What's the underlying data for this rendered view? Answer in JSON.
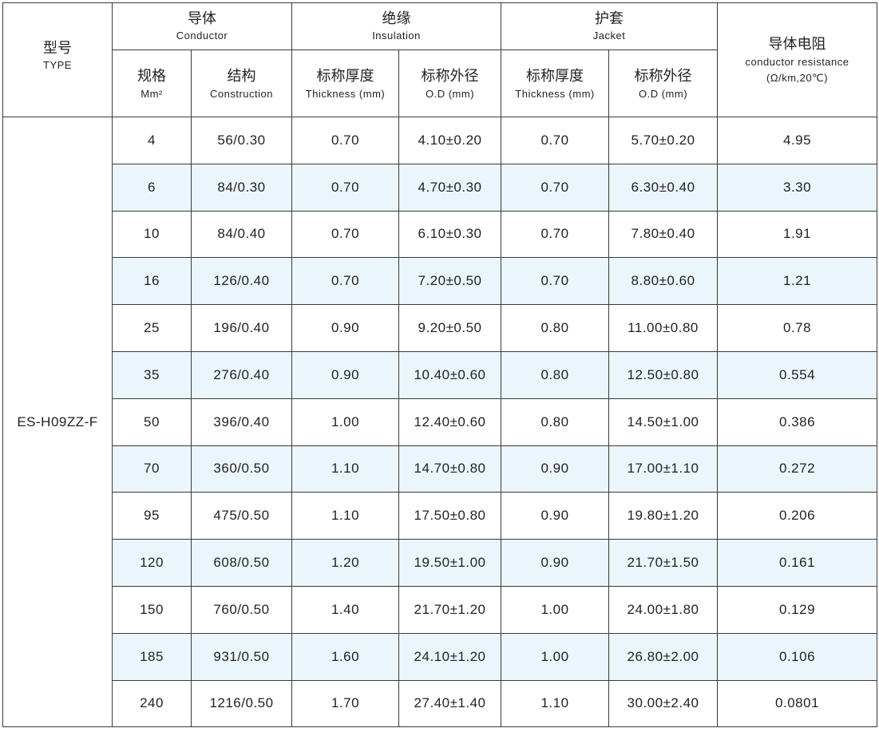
{
  "header": {
    "type": {
      "cn": "型号",
      "en": "TYPE"
    },
    "conductor": {
      "cn": "导体",
      "en": "Conductor"
    },
    "insulation": {
      "cn": "绝缘",
      "en": "Insulation"
    },
    "jacket": {
      "cn": "护套",
      "en": "Jacket"
    },
    "resistance": {
      "cn": "导体电阻",
      "en": "conductor resistance",
      "unit": "(Ω/km,20℃)"
    },
    "size": {
      "cn": "规格",
      "en": "Mm²"
    },
    "construction": {
      "cn": "结构",
      "en": "Construction"
    },
    "ins_thickness": {
      "cn": "标称厚度",
      "en": "Thickness (mm)"
    },
    "ins_od": {
      "cn": "标称外径",
      "en": "O.D (mm)"
    },
    "jac_thickness": {
      "cn": "标称厚度",
      "en": "Thickness (mm)"
    },
    "jac_od": {
      "cn": "标称外径",
      "en": "O.D (mm)"
    }
  },
  "type_value": "ES-H09ZZ-F",
  "colors": {
    "stripe": "#eaf6fb",
    "border": "#3a3a3a"
  },
  "rows": [
    [
      "4",
      "56/0.30",
      "0.70",
      "4.10±0.20",
      "0.70",
      "5.70±0.20",
      "4.95"
    ],
    [
      "6",
      "84/0.30",
      "0.70",
      "4.70±0.30",
      "0.70",
      "6.30±0.40",
      "3.30"
    ],
    [
      "10",
      "84/0.40",
      "0.70",
      "6.10±0.30",
      "0.70",
      "7.80±0.40",
      "1.91"
    ],
    [
      "16",
      "126/0.40",
      "0.70",
      "7.20±0.50",
      "0.70",
      "8.80±0.60",
      "1.21"
    ],
    [
      "25",
      "196/0.40",
      "0.90",
      "9.20±0.50",
      "0.80",
      "11.00±0.80",
      "0.78"
    ],
    [
      "35",
      "276/0.40",
      "0.90",
      "10.40±0.60",
      "0.80",
      "12.50±0.80",
      "0.554"
    ],
    [
      "50",
      "396/0.40",
      "1.00",
      "12.40±0.60",
      "0.80",
      "14.50±1.00",
      "0.386"
    ],
    [
      "70",
      "360/0.50",
      "1.10",
      "14.70±0.80",
      "0.90",
      "17.00±1.10",
      "0.272"
    ],
    [
      "95",
      "475/0.50",
      "1.10",
      "17.50±0.80",
      "0.90",
      "19.80±1.20",
      "0.206"
    ],
    [
      "120",
      "608/0.50",
      "1.20",
      "19.50±1.00",
      "0.90",
      "21.70±1.50",
      "0.161"
    ],
    [
      "150",
      "760/0.50",
      "1.40",
      "21.70±1.20",
      "1.00",
      "24.00±1.80",
      "0.129"
    ],
    [
      "185",
      "931/0.50",
      "1.60",
      "24.10±1.20",
      "1.00",
      "26.80±2.00",
      "0.106"
    ],
    [
      "240",
      "1216/0.50",
      "1.70",
      "27.40±1.40",
      "1.10",
      "30.00±2.40",
      "0.0801"
    ]
  ]
}
